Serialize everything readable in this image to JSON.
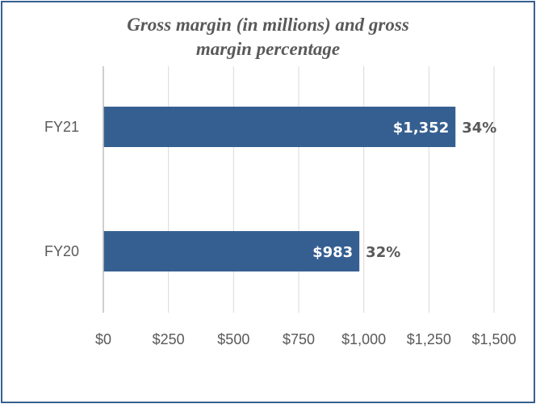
{
  "chart_data": {
    "type": "bar",
    "orientation": "horizontal",
    "title_line1": "Gross margin (in millions) and gross",
    "title_line2": "margin percentage",
    "categories": [
      "FY21",
      "FY20"
    ],
    "series": [
      {
        "values": [
          1352,
          983
        ],
        "value_labels": [
          "$1,352",
          "$983"
        ],
        "percent_labels": [
          "34%",
          "32%"
        ]
      }
    ],
    "xlim": [
      0,
      1500
    ],
    "x_ticks": [
      0,
      250,
      500,
      750,
      1000,
      1250,
      1500
    ],
    "x_tick_labels": [
      "$0",
      "$250",
      "$500",
      "$750",
      "$1,000",
      "$1,250",
      "$1,500"
    ],
    "grid": true,
    "bar_color": "#365f91",
    "grid_color": "#d9d9d9",
    "frame_color": "#365f91"
  }
}
